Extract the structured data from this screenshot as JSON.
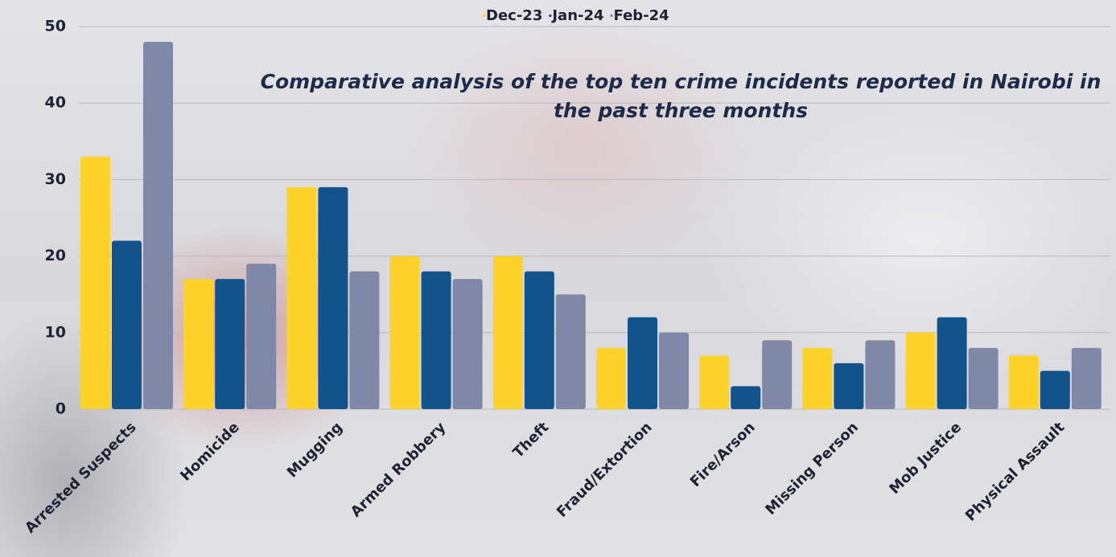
{
  "chart_data": {
    "type": "bar",
    "title": "Comparative analysis of the top ten crime incidents reported in Nairobi in the past three months",
    "categories": [
      "Arrested Suspects",
      "Homicide",
      "Mugging",
      "Armed Robbery",
      "Theft",
      "Fraud/Extortion",
      "Fire/Arson",
      "Missing Person",
      "Mob Justice",
      "Physical Assault"
    ],
    "series": [
      {
        "name": "Dec-23",
        "color": "#fdd22b",
        "values": [
          33,
          17,
          29,
          20,
          20,
          8,
          7,
          8,
          10,
          7
        ]
      },
      {
        "name": "Jan-24",
        "color": "#11538a",
        "values": [
          22,
          17,
          29,
          18,
          18,
          12,
          3,
          6,
          12,
          5
        ]
      },
      {
        "name": "Feb-24",
        "color": "#7f88a6",
        "values": [
          48,
          19,
          18,
          17,
          15,
          10,
          9,
          9,
          8,
          8
        ]
      }
    ],
    "ylim": [
      0,
      50
    ],
    "yticks": [
      0,
      10,
      20,
      30,
      40,
      50
    ],
    "grid": true,
    "legend": "top"
  }
}
